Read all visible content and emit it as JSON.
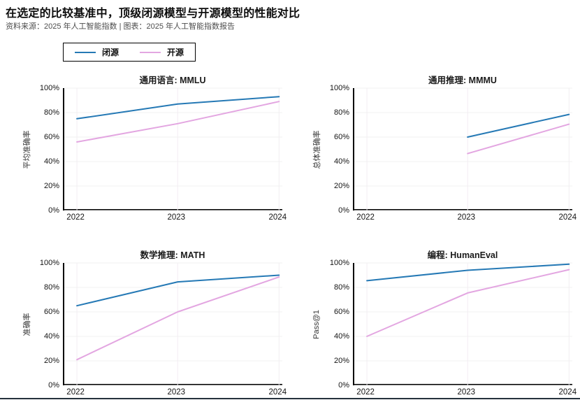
{
  "header": {
    "title": "在选定的比较基准中，顶级闭源模型与开源模型的性能对比",
    "source": "资料来源：2025 年人工智能指数 | 图表：2025 年人工智能指数报告"
  },
  "legend": {
    "items": [
      {
        "label": "闭源",
        "color": "#2579b5"
      },
      {
        "label": "开源",
        "color": "#e3a6e1"
      }
    ]
  },
  "chart_data": [
    {
      "type": "line",
      "title": "通用语言: MMLU",
      "ylabel": "平均准确率",
      "x": [
        "2022",
        "2023",
        "2024"
      ],
      "ylim": [
        0,
        100
      ],
      "yticks": [
        0,
        20,
        40,
        60,
        80,
        100
      ],
      "ytick_suffix": "%",
      "grid": true,
      "series": [
        {
          "name": "闭源",
          "color": "#2579b5",
          "values": [
            75,
            87,
            93
          ]
        },
        {
          "name": "开源",
          "color": "#e3a6e1",
          "values": [
            56,
            71,
            89
          ]
        }
      ]
    },
    {
      "type": "line",
      "title": "通用推理: MMMU",
      "ylabel": "总体准确率",
      "x": [
        "2022",
        "2023",
        "2024"
      ],
      "ylim": [
        0,
        100
      ],
      "yticks": [
        0,
        20,
        40,
        60,
        80,
        100
      ],
      "ytick_suffix": "%",
      "grid": true,
      "series": [
        {
          "name": "闭源",
          "color": "#2579b5",
          "values": [
            null,
            60,
            78.5
          ]
        },
        {
          "name": "开源",
          "color": "#e3a6e1",
          "values": [
            null,
            46.5,
            70.5
          ]
        }
      ]
    },
    {
      "type": "line",
      "title": "数学推理: MATH",
      "ylabel": "准确率",
      "x": [
        "2022",
        "2023",
        "2024"
      ],
      "ylim": [
        0,
        100
      ],
      "yticks": [
        0,
        20,
        40,
        60,
        80,
        100
      ],
      "ytick_suffix": "%",
      "grid": true,
      "series": [
        {
          "name": "闭源",
          "color": "#2579b5",
          "values": [
            65,
            84.5,
            90
          ]
        },
        {
          "name": "开源",
          "color": "#e3a6e1",
          "values": [
            21,
            60,
            88.5
          ]
        }
      ]
    },
    {
      "type": "line",
      "title": "编程: HumanEval",
      "ylabel": "Pass@1",
      "x": [
        "2022",
        "2023",
        "2024"
      ],
      "ylim": [
        0,
        100
      ],
      "yticks": [
        0,
        20,
        40,
        60,
        80,
        100
      ],
      "ytick_suffix": "%",
      "grid": true,
      "series": [
        {
          "name": "闭源",
          "color": "#2579b5",
          "values": [
            85.5,
            94,
            99
          ]
        },
        {
          "name": "开源",
          "color": "#e3a6e1",
          "values": [
            40,
            75.5,
            94.5
          ]
        }
      ]
    }
  ]
}
